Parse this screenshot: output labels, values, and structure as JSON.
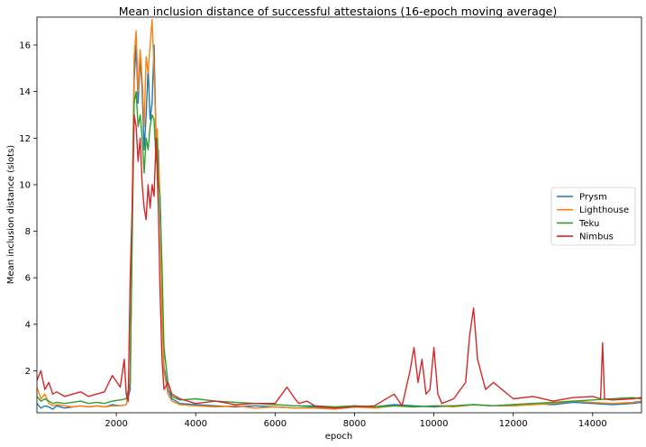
{
  "chart_data": {
    "type": "line",
    "title": "Mean inclusion distance of successful attestaions (16-epoch moving average)",
    "xlabel": "epoch",
    "ylabel": "Mean inclusion distance (slots)",
    "xlim": [
      0,
      15230
    ],
    "ylim": [
      0.2,
      17.2
    ],
    "xticks": [
      2000,
      4000,
      6000,
      8000,
      10000,
      12000,
      14000
    ],
    "yticks": [
      2,
      4,
      6,
      8,
      10,
      12,
      14,
      16
    ],
    "grid": false,
    "legend_position": "center-right",
    "series": [
      {
        "name": "Prysm",
        "color": "#1f77b4",
        "x": [
          0,
          100,
          200,
          300,
          400,
          500,
          700,
          900,
          1100,
          1300,
          1500,
          1700,
          1900,
          2100,
          2250,
          2350,
          2400,
          2450,
          2500,
          2550,
          2600,
          2650,
          2700,
          2750,
          2800,
          2850,
          2900,
          2950,
          3000,
          3030,
          3060,
          3100,
          3150,
          3200,
          3300,
          3400,
          3600,
          4000,
          4500,
          5000,
          5500,
          6000,
          6500,
          7000,
          7500,
          8000,
          8500,
          9000,
          9500,
          10000,
          10500,
          11000,
          11500,
          12000,
          12500,
          13000,
          13500,
          14000,
          14500,
          15000,
          15230
        ],
        "y": [
          0.6,
          0.4,
          0.5,
          0.45,
          0.35,
          0.5,
          0.4,
          0.45,
          0.5,
          0.45,
          0.5,
          0.45,
          0.55,
          0.5,
          0.55,
          1.2,
          8.5,
          14.5,
          16.0,
          13.5,
          15.5,
          14.0,
          11.5,
          13.0,
          15.0,
          12.8,
          13.5,
          16.0,
          12.0,
          10.8,
          11.5,
          9.0,
          5.0,
          2.2,
          1.2,
          0.8,
          0.6,
          0.55,
          0.5,
          0.45,
          0.5,
          0.45,
          0.4,
          0.45,
          0.4,
          0.5,
          0.45,
          0.55,
          0.5,
          0.45,
          0.5,
          0.55,
          0.5,
          0.55,
          0.6,
          0.55,
          0.65,
          0.6,
          0.55,
          0.6,
          0.65
        ]
      },
      {
        "name": "Lighthouse",
        "color": "#ff7f0e",
        "x": [
          0,
          100,
          200,
          300,
          400,
          500,
          700,
          900,
          1100,
          1300,
          1500,
          1700,
          1900,
          2100,
          2250,
          2350,
          2400,
          2450,
          2500,
          2550,
          2600,
          2650,
          2700,
          2750,
          2800,
          2850,
          2900,
          2950,
          3000,
          3030,
          3060,
          3100,
          3150,
          3200,
          3300,
          3400,
          3600,
          4000,
          4500,
          5000,
          5500,
          6000,
          6500,
          7000,
          7500,
          8000,
          8500,
          9000,
          9500,
          10000,
          10500,
          11000,
          11500,
          12000,
          12500,
          13000,
          13500,
          14000,
          14500,
          15000,
          15230
        ],
        "y": [
          1.3,
          0.8,
          1.0,
          0.6,
          0.5,
          0.55,
          0.5,
          0.45,
          0.5,
          0.45,
          0.5,
          0.45,
          0.5,
          0.5,
          0.55,
          1.5,
          9.0,
          15.5,
          16.6,
          14.0,
          15.8,
          14.5,
          12.5,
          15.5,
          14.8,
          16.0,
          17.1,
          15.0,
          12.0,
          12.4,
          11.0,
          9.5,
          4.5,
          2.0,
          1.0,
          0.7,
          0.55,
          0.5,
          0.45,
          0.5,
          0.4,
          0.45,
          0.4,
          0.4,
          0.35,
          0.45,
          0.4,
          0.5,
          0.45,
          0.5,
          0.45,
          0.55,
          0.5,
          0.5,
          0.55,
          0.6,
          0.7,
          0.65,
          0.6,
          0.65,
          0.7
        ]
      },
      {
        "name": "Teku",
        "color": "#2ca02c",
        "x": [
          0,
          100,
          200,
          300,
          400,
          500,
          700,
          900,
          1100,
          1300,
          1500,
          1700,
          1900,
          2100,
          2250,
          2350,
          2400,
          2450,
          2500,
          2550,
          2600,
          2650,
          2700,
          2750,
          2800,
          2850,
          2900,
          2950,
          3000,
          3030,
          3060,
          3100,
          3150,
          3200,
          3300,
          3400,
          3600,
          4000,
          4500,
          5000,
          5500,
          6000,
          6500,
          7000,
          7500,
          8000,
          8500,
          9000,
          9500,
          10000,
          10500,
          11000,
          11500,
          12000,
          12500,
          13000,
          13500,
          14000,
          14500,
          15000,
          15230
        ],
        "y": [
          0.9,
          0.7,
          0.8,
          0.7,
          0.6,
          0.65,
          0.6,
          0.65,
          0.7,
          0.6,
          0.65,
          0.6,
          0.7,
          0.75,
          0.8,
          1.5,
          7.5,
          13.5,
          14.0,
          12.5,
          13.0,
          12.0,
          10.5,
          12.0,
          11.5,
          12.5,
          13.0,
          12.8,
          11.0,
          12.0,
          10.0,
          9.5,
          6.5,
          3.0,
          1.5,
          0.9,
          0.75,
          0.8,
          0.7,
          0.65,
          0.6,
          0.55,
          0.5,
          0.5,
          0.45,
          0.5,
          0.45,
          0.5,
          0.45,
          0.5,
          0.5,
          0.55,
          0.5,
          0.55,
          0.6,
          0.65,
          0.7,
          0.75,
          0.8,
          0.85,
          0.8
        ]
      },
      {
        "name": "Nimbus",
        "color": "#d62728",
        "x": [
          0,
          100,
          200,
          300,
          400,
          500,
          700,
          900,
          1100,
          1300,
          1500,
          1700,
          1900,
          2100,
          2200,
          2250,
          2300,
          2350,
          2400,
          2450,
          2500,
          2550,
          2600,
          2650,
          2700,
          2750,
          2800,
          2850,
          2900,
          2950,
          3000,
          3030,
          3060,
          3100,
          3150,
          3200,
          3300,
          3400,
          3600,
          4000,
          4500,
          5000,
          5500,
          6000,
          6300,
          6500,
          6600,
          6800,
          7000,
          7500,
          8000,
          8500,
          9000,
          9200,
          9400,
          9500,
          9600,
          9700,
          9800,
          9900,
          10000,
          10100,
          10200,
          10500,
          10800,
          10900,
          11000,
          11100,
          11300,
          11500,
          12000,
          12500,
          13000,
          13500,
          14000,
          14200,
          14250,
          14300,
          14500,
          15000,
          15230
        ],
        "y": [
          1.6,
          2.0,
          1.2,
          1.5,
          1.0,
          1.1,
          0.9,
          1.0,
          1.1,
          0.9,
          1.0,
          1.1,
          1.8,
          1.3,
          2.5,
          1.0,
          0.7,
          6.0,
          9.0,
          13.0,
          12.5,
          11.0,
          12.0,
          10.0,
          9.0,
          8.5,
          10.0,
          9.0,
          10.0,
          9.5,
          12.0,
          10.5,
          9.0,
          5.5,
          2.5,
          1.2,
          1.5,
          1.0,
          0.8,
          0.6,
          0.7,
          0.55,
          0.6,
          0.6,
          1.3,
          0.8,
          0.6,
          0.7,
          0.5,
          0.4,
          0.45,
          0.5,
          1.0,
          0.5,
          2.0,
          3.0,
          1.5,
          2.5,
          1.0,
          1.2,
          3.0,
          1.0,
          0.6,
          0.8,
          1.5,
          3.5,
          4.7,
          2.5,
          1.2,
          1.5,
          0.8,
          0.9,
          0.7,
          0.85,
          0.9,
          0.8,
          3.2,
          0.8,
          0.75,
          0.8,
          0.85
        ]
      }
    ]
  }
}
